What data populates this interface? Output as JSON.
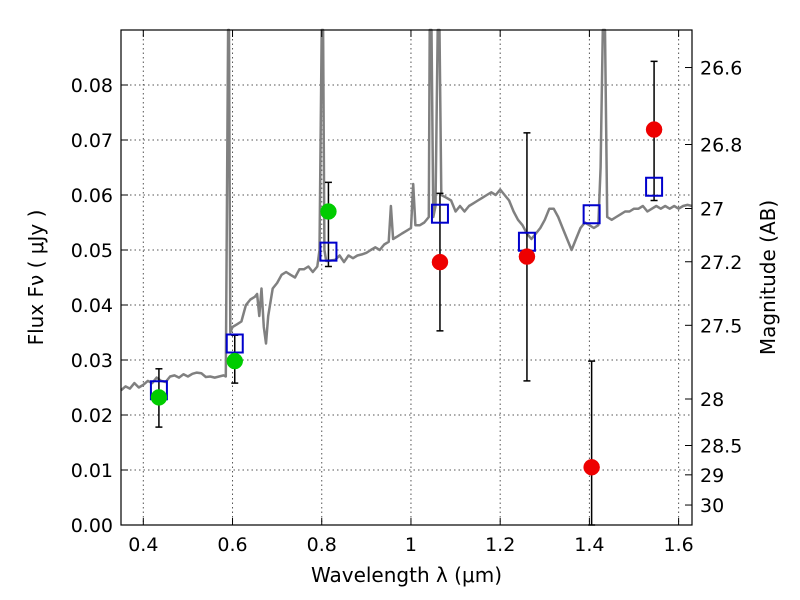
{
  "chart_data": {
    "type": "scatter",
    "xlabel": "Wavelength  λ (μm)",
    "ylabel": "Flux  Fν  ( μJy )",
    "y2label": "Magnitude (AB)",
    "xlim": [
      0.35,
      1.63
    ],
    "ylim": [
      0.0,
      0.09
    ],
    "grid": true,
    "x_ticks": [
      0.4,
      0.6,
      0.8,
      1.0,
      1.2,
      1.4,
      1.6
    ],
    "x_tick_labels": [
      "0.4",
      "0.6",
      "0.8",
      "1",
      "1.2",
      "1.4",
      "1.6"
    ],
    "y_ticks": [
      0.0,
      0.01,
      0.02,
      0.03,
      0.04,
      0.05,
      0.06,
      0.07,
      0.08
    ],
    "y_tick_labels": [
      "0.00",
      "0.01",
      "0.02",
      "0.03",
      "0.04",
      "0.05",
      "0.06",
      "0.07",
      "0.08"
    ],
    "right_ticks": [
      {
        "label": "26.6",
        "mag": 26.6
      },
      {
        "label": "26.8",
        "mag": 26.8
      },
      {
        "label": "27",
        "mag": 27.0
      },
      {
        "label": "27.2",
        "mag": 27.2
      },
      {
        "label": "27.5",
        "mag": 27.5
      },
      {
        "label": "28",
        "mag": 28.0
      },
      {
        "label": "28.5",
        "mag": 28.5
      },
      {
        "label": "29",
        "mag": 29.0
      },
      {
        "label": "30",
        "mag": 30.0
      }
    ],
    "colors": {
      "spectrum": "#808080",
      "observed_optical": "#00cc00",
      "observed_ir": "#ee0000",
      "model": "#0000cc",
      "errorbar": "#000000",
      "grid": "#555555"
    },
    "series": [
      {
        "kind": "line",
        "color_key": "spectrum",
        "points": [
          [
            0.35,
            0.0245
          ],
          [
            0.36,
            0.0252
          ],
          [
            0.37,
            0.0248
          ],
          [
            0.38,
            0.0258
          ],
          [
            0.39,
            0.025
          ],
          [
            0.4,
            0.0255
          ],
          [
            0.41,
            0.0262
          ],
          [
            0.42,
            0.0258
          ],
          [
            0.43,
            0.0268
          ],
          [
            0.44,
            0.0262
          ],
          [
            0.45,
            0.026
          ],
          [
            0.46,
            0.027
          ],
          [
            0.47,
            0.0272
          ],
          [
            0.48,
            0.0268
          ],
          [
            0.49,
            0.0274
          ],
          [
            0.5,
            0.027
          ],
          [
            0.51,
            0.0275
          ],
          [
            0.52,
            0.0277
          ],
          [
            0.53,
            0.0276
          ],
          [
            0.54,
            0.0269
          ],
          [
            0.55,
            0.027
          ],
          [
            0.56,
            0.0268
          ],
          [
            0.57,
            0.027
          ],
          [
            0.58,
            0.0272
          ],
          [
            0.585,
            0.027
          ],
          [
            0.59,
            0.09
          ],
          [
            0.592,
            0.09
          ],
          [
            0.595,
            0.035
          ],
          [
            0.6,
            0.036
          ],
          [
            0.61,
            0.0365
          ],
          [
            0.62,
            0.037
          ],
          [
            0.63,
            0.04
          ],
          [
            0.64,
            0.041
          ],
          [
            0.65,
            0.0415
          ],
          [
            0.655,
            0.042
          ],
          [
            0.66,
            0.038
          ],
          [
            0.665,
            0.043
          ],
          [
            0.67,
            0.036
          ],
          [
            0.675,
            0.033
          ],
          [
            0.68,
            0.038
          ],
          [
            0.69,
            0.043
          ],
          [
            0.7,
            0.044
          ],
          [
            0.71,
            0.0455
          ],
          [
            0.72,
            0.046
          ],
          [
            0.73,
            0.0455
          ],
          [
            0.74,
            0.045
          ],
          [
            0.75,
            0.0465
          ],
          [
            0.76,
            0.0465
          ],
          [
            0.77,
            0.047
          ],
          [
            0.78,
            0.046
          ],
          [
            0.79,
            0.047
          ],
          [
            0.795,
            0.05
          ],
          [
            0.8,
            0.09
          ],
          [
            0.803,
            0.09
          ],
          [
            0.806,
            0.05
          ],
          [
            0.81,
            0.048
          ],
          [
            0.83,
            0.0482
          ],
          [
            0.84,
            0.049
          ],
          [
            0.85,
            0.0478
          ],
          [
            0.86,
            0.049
          ],
          [
            0.87,
            0.0485
          ],
          [
            0.88,
            0.049
          ],
          [
            0.89,
            0.0492
          ],
          [
            0.9,
            0.0495
          ],
          [
            0.91,
            0.05
          ],
          [
            0.92,
            0.0505
          ],
          [
            0.93,
            0.05
          ],
          [
            0.94,
            0.051
          ],
          [
            0.95,
            0.0515
          ],
          [
            0.955,
            0.058
          ],
          [
            0.96,
            0.052
          ],
          [
            0.97,
            0.0525
          ],
          [
            0.98,
            0.053
          ],
          [
            0.99,
            0.0535
          ],
          [
            1.0,
            0.054
          ],
          [
            1.005,
            0.062
          ],
          [
            1.01,
            0.0545
          ],
          [
            1.02,
            0.0545
          ],
          [
            1.03,
            0.055
          ],
          [
            1.04,
            0.056
          ],
          [
            1.042,
            0.09
          ],
          [
            1.046,
            0.09
          ],
          [
            1.05,
            0.056
          ],
          [
            1.055,
            0.058
          ],
          [
            1.06,
            0.09
          ],
          [
            1.064,
            0.09
          ],
          [
            1.068,
            0.06
          ],
          [
            1.08,
            0.0595
          ],
          [
            1.09,
            0.059
          ],
          [
            1.1,
            0.057
          ],
          [
            1.11,
            0.058
          ],
          [
            1.12,
            0.057
          ],
          [
            1.13,
            0.058
          ],
          [
            1.14,
            0.0585
          ],
          [
            1.15,
            0.059
          ],
          [
            1.16,
            0.0595
          ],
          [
            1.17,
            0.06
          ],
          [
            1.18,
            0.0605
          ],
          [
            1.19,
            0.06
          ],
          [
            1.2,
            0.061
          ],
          [
            1.21,
            0.06
          ],
          [
            1.22,
            0.059
          ],
          [
            1.23,
            0.057
          ],
          [
            1.24,
            0.0555
          ],
          [
            1.25,
            0.0545
          ],
          [
            1.26,
            0.053
          ],
          [
            1.27,
            0.052
          ],
          [
            1.28,
            0.053
          ],
          [
            1.29,
            0.054
          ],
          [
            1.3,
            0.0555
          ],
          [
            1.31,
            0.0575
          ],
          [
            1.32,
            0.0575
          ],
          [
            1.33,
            0.056
          ],
          [
            1.34,
            0.054
          ],
          [
            1.35,
            0.052
          ],
          [
            1.36,
            0.05
          ],
          [
            1.37,
            0.052
          ],
          [
            1.38,
            0.054
          ],
          [
            1.39,
            0.055
          ],
          [
            1.4,
            0.0545
          ],
          [
            1.41,
            0.054
          ],
          [
            1.42,
            0.0545
          ],
          [
            1.425,
            0.065
          ],
          [
            1.43,
            0.09
          ],
          [
            1.435,
            0.09
          ],
          [
            1.44,
            0.056
          ],
          [
            1.45,
            0.0555
          ],
          [
            1.46,
            0.056
          ],
          [
            1.47,
            0.0565
          ],
          [
            1.48,
            0.057
          ],
          [
            1.49,
            0.057
          ],
          [
            1.5,
            0.0575
          ],
          [
            1.51,
            0.0575
          ],
          [
            1.52,
            0.058
          ],
          [
            1.53,
            0.057
          ],
          [
            1.54,
            0.0575
          ],
          [
            1.55,
            0.058
          ],
          [
            1.56,
            0.0575
          ],
          [
            1.57,
            0.058
          ],
          [
            1.58,
            0.0575
          ],
          [
            1.59,
            0.058
          ],
          [
            1.6,
            0.0575
          ],
          [
            1.61,
            0.058
          ],
          [
            1.62,
            0.0582
          ],
          [
            1.63,
            0.058
          ]
        ]
      },
      {
        "kind": "model-squares",
        "color_key": "model",
        "points": [
          [
            0.435,
            0.0245
          ],
          [
            0.605,
            0.033
          ],
          [
            0.815,
            0.0497
          ],
          [
            1.065,
            0.0566
          ],
          [
            1.26,
            0.0515
          ],
          [
            1.405,
            0.0565
          ],
          [
            1.545,
            0.0615
          ]
        ]
      },
      {
        "kind": "observed",
        "color_key": "observed_optical",
        "points": [
          {
            "x": 0.435,
            "y": 0.0232,
            "err": [
              0.0178,
              0.0284
            ]
          },
          {
            "x": 0.605,
            "y": 0.0298,
            "err": [
              0.0258,
              0.0345
            ]
          },
          {
            "x": 0.815,
            "y": 0.057,
            "err": [
              0.047,
              0.0623
            ]
          }
        ]
      },
      {
        "kind": "observed",
        "color_key": "observed_ir",
        "points": [
          {
            "x": 1.065,
            "y": 0.0478,
            "err": [
              0.0353,
              0.0603
            ]
          },
          {
            "x": 1.26,
            "y": 0.0488,
            "err": [
              0.0262,
              0.0713
            ]
          },
          {
            "x": 1.405,
            "y": 0.0105,
            "err": [
              0.0,
              0.0298
            ]
          },
          {
            "x": 1.545,
            "y": 0.0719,
            "err": [
              0.059,
              0.0843
            ]
          }
        ]
      }
    ]
  }
}
